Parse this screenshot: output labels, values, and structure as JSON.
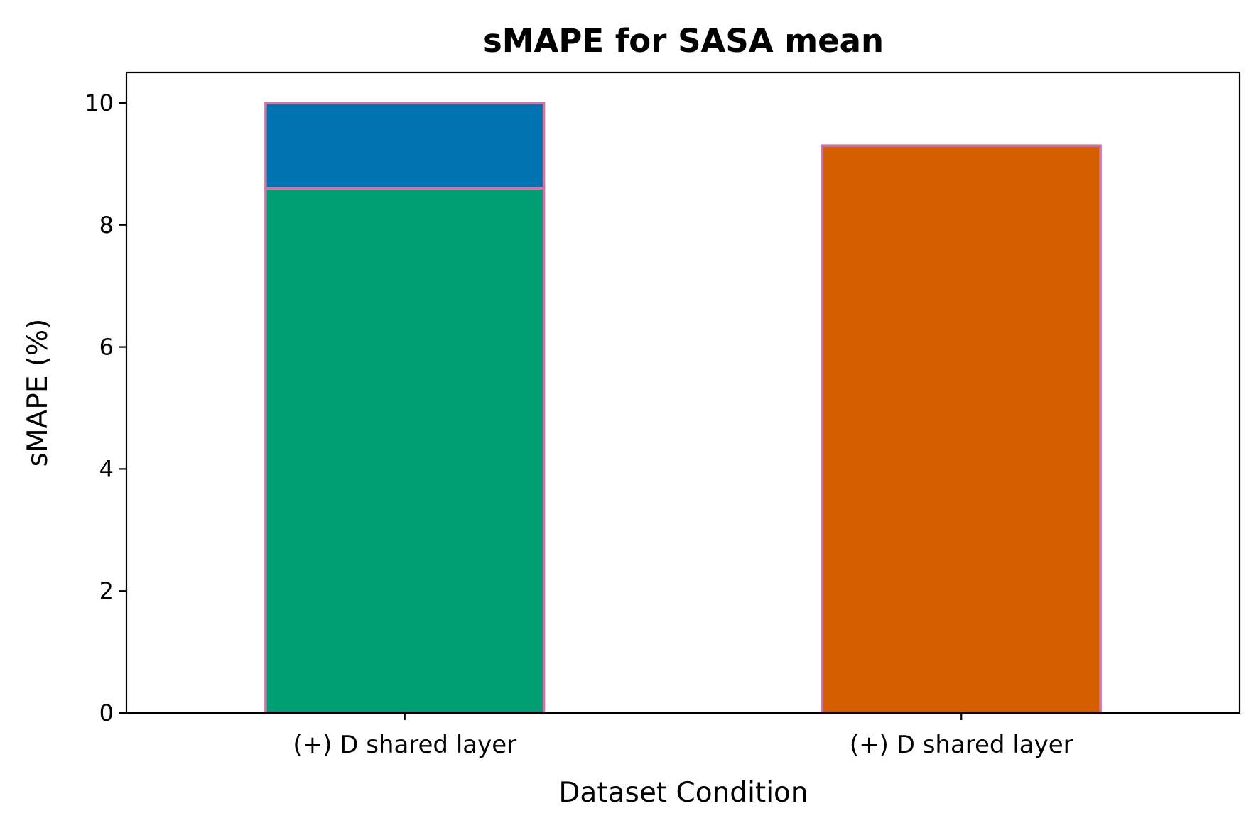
{
  "chart_data": {
    "type": "bar",
    "title": "sMAPE for SASA mean",
    "xlabel": "Dataset Condition",
    "ylabel": "sMAPE (%)",
    "ylim": [
      0,
      10.5
    ],
    "yticks": [
      "0",
      "2",
      "4",
      "6",
      "8",
      "10"
    ],
    "categories": [
      "(+) D shared layer",
      "(+) D shared layer"
    ],
    "bars": [
      {
        "category_index": 0,
        "segments": [
          {
            "value": 8.6,
            "color": "#009E73"
          },
          {
            "value": 1.4,
            "color": "#0072B2"
          }
        ]
      },
      {
        "category_index": 1,
        "segments": [
          {
            "value": 9.3,
            "color": "#D55E00"
          }
        ]
      }
    ],
    "edge_color": "#CC79A7",
    "grid": false,
    "legend": "none"
  }
}
